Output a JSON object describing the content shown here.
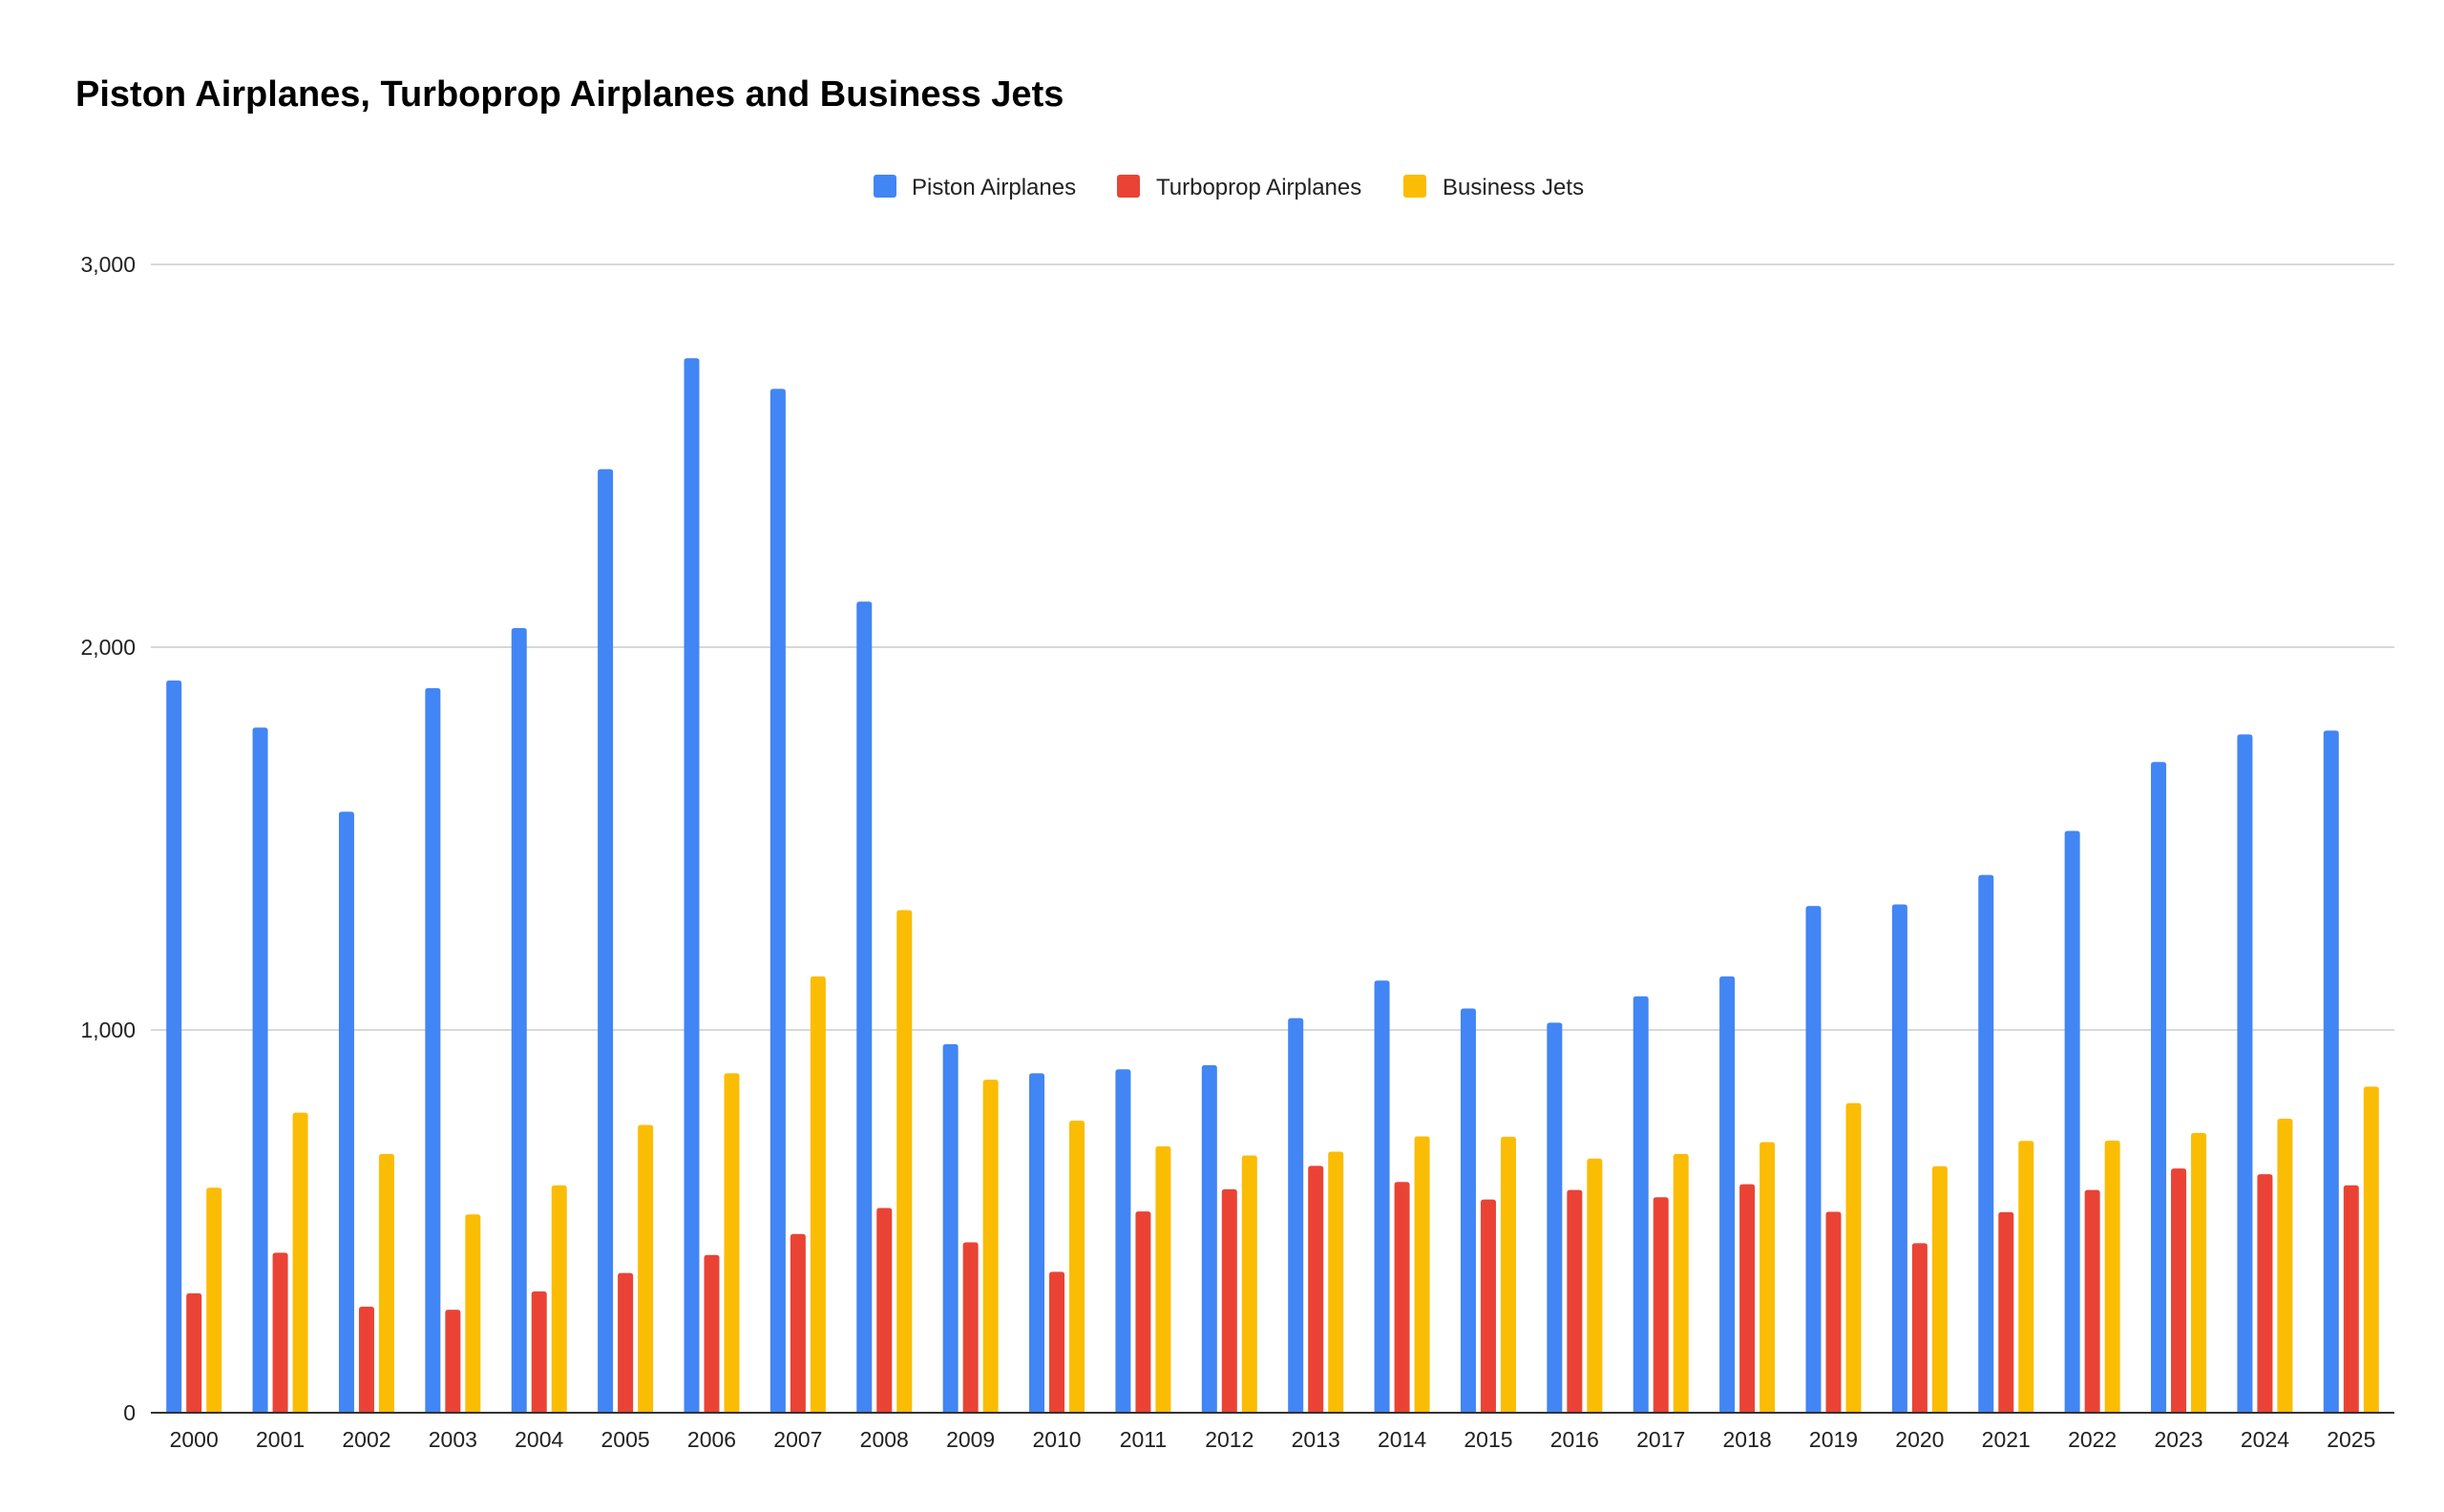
{
  "chart_data": {
    "type": "bar",
    "title": "Piston Airplanes, Turboprop Airplanes and Business Jets",
    "xlabel": "",
    "ylabel": "",
    "categories": [
      "2000",
      "2001",
      "2002",
      "2003",
      "2004",
      "2005",
      "2006",
      "2007",
      "2008",
      "2009",
      "2010",
      "2011",
      "2012",
      "2013",
      "2014",
      "2015",
      "2016",
      "2017",
      "2018",
      "2019",
      "2020",
      "2021",
      "2022",
      "2023",
      "2024",
      "2025"
    ],
    "series": [
      {
        "name": "Piston Airplanes",
        "color": "#4285F4",
        "values": [
          1913,
          1790,
          1570,
          1893,
          2050,
          2465,
          2755,
          2675,
          2119,
          963,
          887,
          897,
          908,
          1031,
          1129,
          1056,
          1019,
          1088,
          1140,
          1324,
          1328,
          1405,
          1520,
          1700,
          1772,
          1782
        ]
      },
      {
        "name": "Turboprop Airplanes",
        "color": "#EA4335",
        "values": [
          312,
          418,
          277,
          269,
          317,
          365,
          412,
          467,
          535,
          445,
          368,
          526,
          584,
          645,
          603,
          557,
          582,
          563,
          597,
          525,
          443,
          524,
          582,
          638,
          623,
          594
        ]
      },
      {
        "name": "Business Jets",
        "color": "#FBBC04",
        "values": [
          588,
          784,
          676,
          518,
          594,
          752,
          887,
          1140,
          1313,
          870,
          763,
          696,
          672,
          682,
          722,
          721,
          664,
          676,
          707,
          809,
          644,
          710,
          711,
          731,
          768,
          852
        ]
      }
    ],
    "ylim": [
      0,
      3000
    ],
    "yticks": [
      0,
      1000,
      2000,
      3000
    ],
    "ytick_labels": [
      "0",
      "1,000",
      "2,000",
      "3,000"
    ],
    "grid": true,
    "legend_position": "top-center"
  }
}
